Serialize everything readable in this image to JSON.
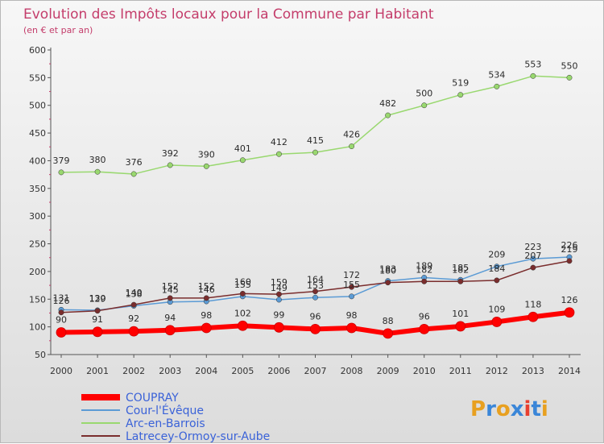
{
  "chart_data": {
    "type": "line",
    "title": "Evolution des Impôts locaux pour la Commune par Habitant",
    "subtitle": "(en € et par an)",
    "xlabel": "",
    "ylabel": "",
    "ylim": [
      50,
      600
    ],
    "yticks": [
      "50",
      "100",
      "150",
      "200",
      "250",
      "300",
      "350",
      "400",
      "450",
      "500",
      "550",
      "600"
    ],
    "categories": [
      "2000",
      "2001",
      "2002",
      "2003",
      "2004",
      "2005",
      "2006",
      "2007",
      "2008",
      "2009",
      "2010",
      "2011",
      "2012",
      "2013",
      "2014"
    ],
    "grid": false,
    "legend_position": "bottom-left",
    "series": [
      {
        "name": "COUPRAY",
        "color": "#ff0000",
        "values": [
          90,
          91,
          92,
          94,
          98,
          102,
          99,
          96,
          98,
          88,
          96,
          101,
          109,
          118,
          126
        ]
      },
      {
        "name": "Cour-l'Évêque",
        "color": "#5b9bd5",
        "values": [
          131,
          130,
          138,
          145,
          146,
          155,
          149,
          153,
          155,
          183,
          189,
          185,
          209,
          223,
          226
        ]
      },
      {
        "name": "Arc-en-Barrois",
        "color": "#99d86f",
        "values": [
          379,
          380,
          376,
          392,
          390,
          401,
          412,
          415,
          426,
          482,
          500,
          519,
          534,
          553,
          550
        ]
      },
      {
        "name": "Latrecey-Ormoy-sur-Aube",
        "color": "#7a2d2d",
        "values": [
          126,
          129,
          140,
          152,
          152,
          160,
          159,
          164,
          172,
          180,
          182,
          182,
          184,
          207,
          219
        ]
      }
    ]
  },
  "logo": {
    "text": "Proxiti"
  }
}
